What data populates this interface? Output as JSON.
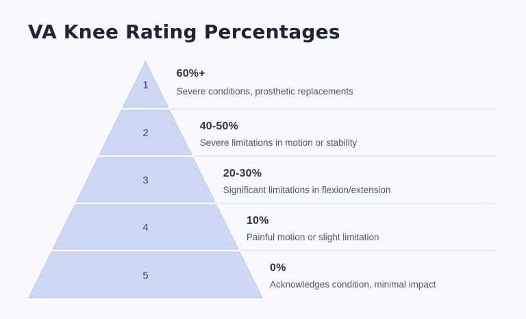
{
  "page": {
    "background": "#f8f8fd"
  },
  "title": "VA Knee Rating Percentages",
  "chart_data": {
    "type": "pyramid",
    "title": "VA Knee Rating Percentages",
    "levels": [
      {
        "rank": "1",
        "value": "60%+",
        "description": "Severe conditions, prosthetic replacements"
      },
      {
        "rank": "2",
        "value": "40-50%",
        "description": "Severe limitations in motion or stability"
      },
      {
        "rank": "3",
        "value": "20-30%",
        "description": "Significant limitations in flexion/extension"
      },
      {
        "rank": "4",
        "value": "10%",
        "description": "Painful motion or slight limitation"
      },
      {
        "rank": "5",
        "value": "0%",
        "description": "Acknowledges condition, minimal impact"
      }
    ],
    "layout": {
      "orientation": "apex-top",
      "separators_between_levels": true,
      "legend": "none",
      "grid": false
    },
    "colors": {
      "segment_fill": "#cdd9f4",
      "segment_border": "#b9c8ee",
      "separator_line": "#e0e4f1",
      "value_text": "#2d3246",
      "description_text": "#4d5469",
      "rank_text": "#3c4254",
      "title_text": "#20243a",
      "background": "#f8f8fd"
    }
  }
}
